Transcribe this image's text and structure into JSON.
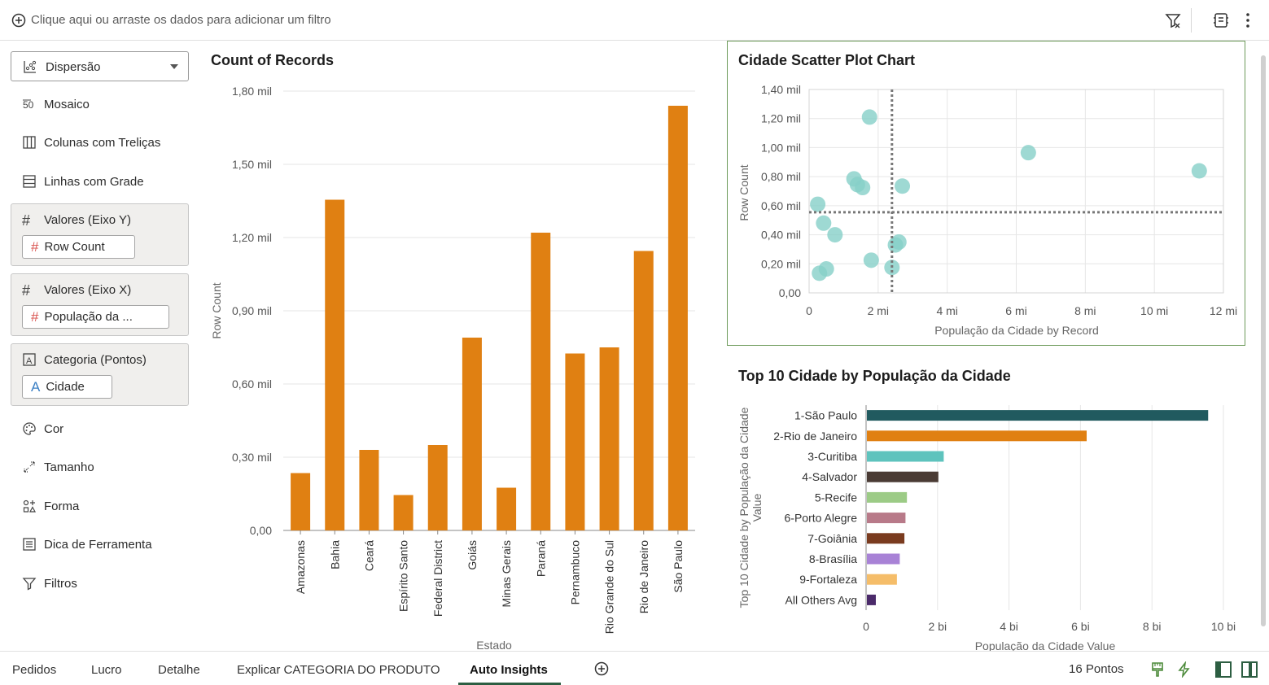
{
  "filterbar": {
    "hint": "Clique aqui ou arraste os dados para adicionar um filtro"
  },
  "grammar": {
    "viz_type": "Dispersão",
    "props": [
      "Mosaico",
      "Colunas com Treliças",
      "Linhas com Grade"
    ],
    "wells": [
      {
        "label": "Valores (Eixo Y)",
        "chip": "Row Count",
        "chip_glyph": "#"
      },
      {
        "label": "Valores (Eixo X)",
        "chip": "População da ...",
        "chip_glyph": "#"
      },
      {
        "label": "Categoria (Pontos)",
        "chip": "Cidade",
        "chip_glyph": "A"
      }
    ],
    "props2": [
      "Cor",
      "Tamanho",
      "Forma",
      "Dica de Ferramenta",
      "Filtros"
    ]
  },
  "tabs": {
    "items": [
      "Pedidos",
      "Lucro",
      "Detalhe",
      "Explicar CATEGORIA DO PRODUTO",
      "Auto Insights"
    ],
    "active": "Auto Insights",
    "points": "16 Pontos"
  },
  "colors": {
    "bar": "#e08012",
    "scatter": "#86cfc8",
    "tab_accent": "#2d5e42",
    "frame": "#6d9a5a"
  },
  "chart_data": [
    {
      "type": "bar",
      "title": "Count of Records",
      "xlabel": "Estado",
      "ylabel": "Row Count",
      "yticks": [
        "0,00",
        "0,30 mil",
        "0,60 mil",
        "0,90 mil",
        "1,20 mil",
        "1,50 mil",
        "1,80 mil"
      ],
      "ylim": [
        0,
        1800
      ],
      "categories": [
        "Amazonas",
        "Bahia",
        "Ceará",
        "Espírito Santo",
        "Federal District",
        "Goiás",
        "Minas Gerais",
        "Paraná",
        "Pernambuco",
        "Rio Grande do Sul",
        "Rio de Janeiro",
        "São Paulo"
      ],
      "values": [
        235,
        1355,
        330,
        145,
        350,
        790,
        175,
        1220,
        725,
        750,
        1145,
        1740
      ]
    },
    {
      "type": "scatter",
      "title": "Cidade Scatter Plot Chart",
      "xlabel": "População da Cidade by Record",
      "ylabel": "Row Count",
      "xticks": [
        "0",
        "2 mi",
        "4 mi",
        "6 mi",
        "8 mi",
        "10 mi",
        "12 mi"
      ],
      "yticks": [
        "0,00",
        "0,20 mil",
        "0,40 mil",
        "0,60 mil",
        "0,80 mil",
        "1,00 mil",
        "1,20 mil",
        "1,40 mil"
      ],
      "xlim": [
        0,
        12
      ],
      "ylim": [
        0,
        1400
      ],
      "points": [
        {
          "x": 1.75,
          "y": 1210
        },
        {
          "x": 6.35,
          "y": 965
        },
        {
          "x": 11.3,
          "y": 840
        },
        {
          "x": 1.3,
          "y": 785
        },
        {
          "x": 1.4,
          "y": 745
        },
        {
          "x": 1.55,
          "y": 725
        },
        {
          "x": 2.7,
          "y": 735
        },
        {
          "x": 0.25,
          "y": 610
        },
        {
          "x": 0.42,
          "y": 480
        },
        {
          "x": 0.75,
          "y": 400
        },
        {
          "x": 2.5,
          "y": 330
        },
        {
          "x": 2.6,
          "y": 350
        },
        {
          "x": 1.8,
          "y": 225
        },
        {
          "x": 2.4,
          "y": 175
        },
        {
          "x": 0.5,
          "y": 165
        },
        {
          "x": 0.3,
          "y": 135
        }
      ],
      "ref_x": 2.4,
      "ref_y": 555
    },
    {
      "type": "bar",
      "orientation": "horizontal",
      "title": "Top 10 Cidade by População da Cidade",
      "xlabel": "População da Cidade Value",
      "ylabel": "Top 10 Cidade by População da Cidade Value",
      "xticks": [
        "0",
        "2 bi",
        "4 bi",
        "6 bi",
        "8 bi",
        "10 bi"
      ],
      "xlim": [
        0,
        10
      ],
      "categories": [
        "1-São Paulo",
        "2-Rio de Janeiro",
        "3-Curitiba",
        "4-Salvador",
        "5-Recife",
        "6-Porto Alegre",
        "7-Goiânia",
        "8-Brasília",
        "9-Fortaleza",
        "All Others Avg"
      ],
      "values": [
        9.55,
        6.15,
        2.15,
        2.0,
        1.12,
        1.08,
        1.05,
        0.92,
        0.84,
        0.25
      ],
      "colors": [
        "#215a5f",
        "#e08012",
        "#5ec3bd",
        "#4a3b34",
        "#9ccb86",
        "#b87a89",
        "#7a3b1f",
        "#a882d6",
        "#f5bd69",
        "#4b2a6a"
      ]
    }
  ]
}
